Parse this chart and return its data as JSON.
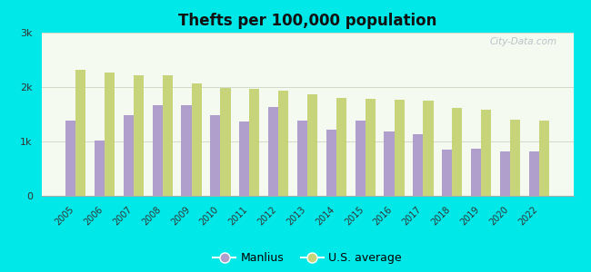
{
  "title": "Thefts per 100,000 population",
  "years": [
    2005,
    2006,
    2007,
    2008,
    2009,
    2010,
    2011,
    2012,
    2013,
    2014,
    2015,
    2016,
    2017,
    2018,
    2019,
    2020,
    2022
  ],
  "manlius": [
    1380,
    1020,
    1490,
    1670,
    1670,
    1490,
    1360,
    1630,
    1390,
    1220,
    1380,
    1190,
    1130,
    850,
    860,
    810,
    810
  ],
  "us_avg": [
    2320,
    2270,
    2210,
    2210,
    2060,
    1990,
    1970,
    1940,
    1870,
    1800,
    1780,
    1760,
    1750,
    1620,
    1580,
    1400,
    1390
  ],
  "manlius_color": "#b09fcc",
  "us_avg_color": "#c8d47a",
  "background_outer": "#00e8e8",
  "background_inner_top": "#f5faf0",
  "background_inner_bottom": "#e8f5e0",
  "ylim": [
    0,
    3000
  ],
  "yticks": [
    0,
    1000,
    2000,
    3000
  ],
  "ytick_labels": [
    "0",
    "1k",
    "2k",
    "3k"
  ],
  "legend_manlius": "Manlius",
  "legend_us": "U.S. average",
  "watermark": "City-Data.com",
  "title_fontsize": 12,
  "bar_width": 0.35
}
